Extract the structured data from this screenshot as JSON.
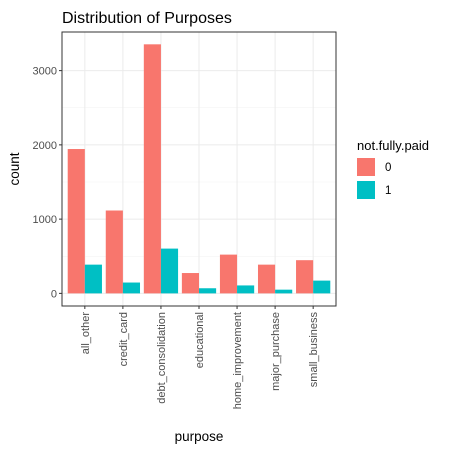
{
  "chart_data": {
    "type": "bar",
    "title": "Distribution of Purposes",
    "xlabel": "purpose",
    "ylabel": "count",
    "categories": [
      "all_other",
      "credit_card",
      "debt_consolidation",
      "educational",
      "home_improvement",
      "major_purchase",
      "small_business"
    ],
    "series": [
      {
        "name": "0",
        "color": "#F8766D",
        "values": [
          1944,
          1116,
          3354,
          274,
          522,
          387,
          447
        ]
      },
      {
        "name": "1",
        "color": "#00BFC4",
        "values": [
          387,
          146,
          603,
          69,
          107,
          50,
          172
        ]
      }
    ],
    "yticks": [
      0,
      1000,
      2000,
      3000
    ],
    "ylim": [
      -170,
      3520
    ],
    "grid": true,
    "legend": {
      "title": "not.fully.paid",
      "position": "right"
    }
  }
}
